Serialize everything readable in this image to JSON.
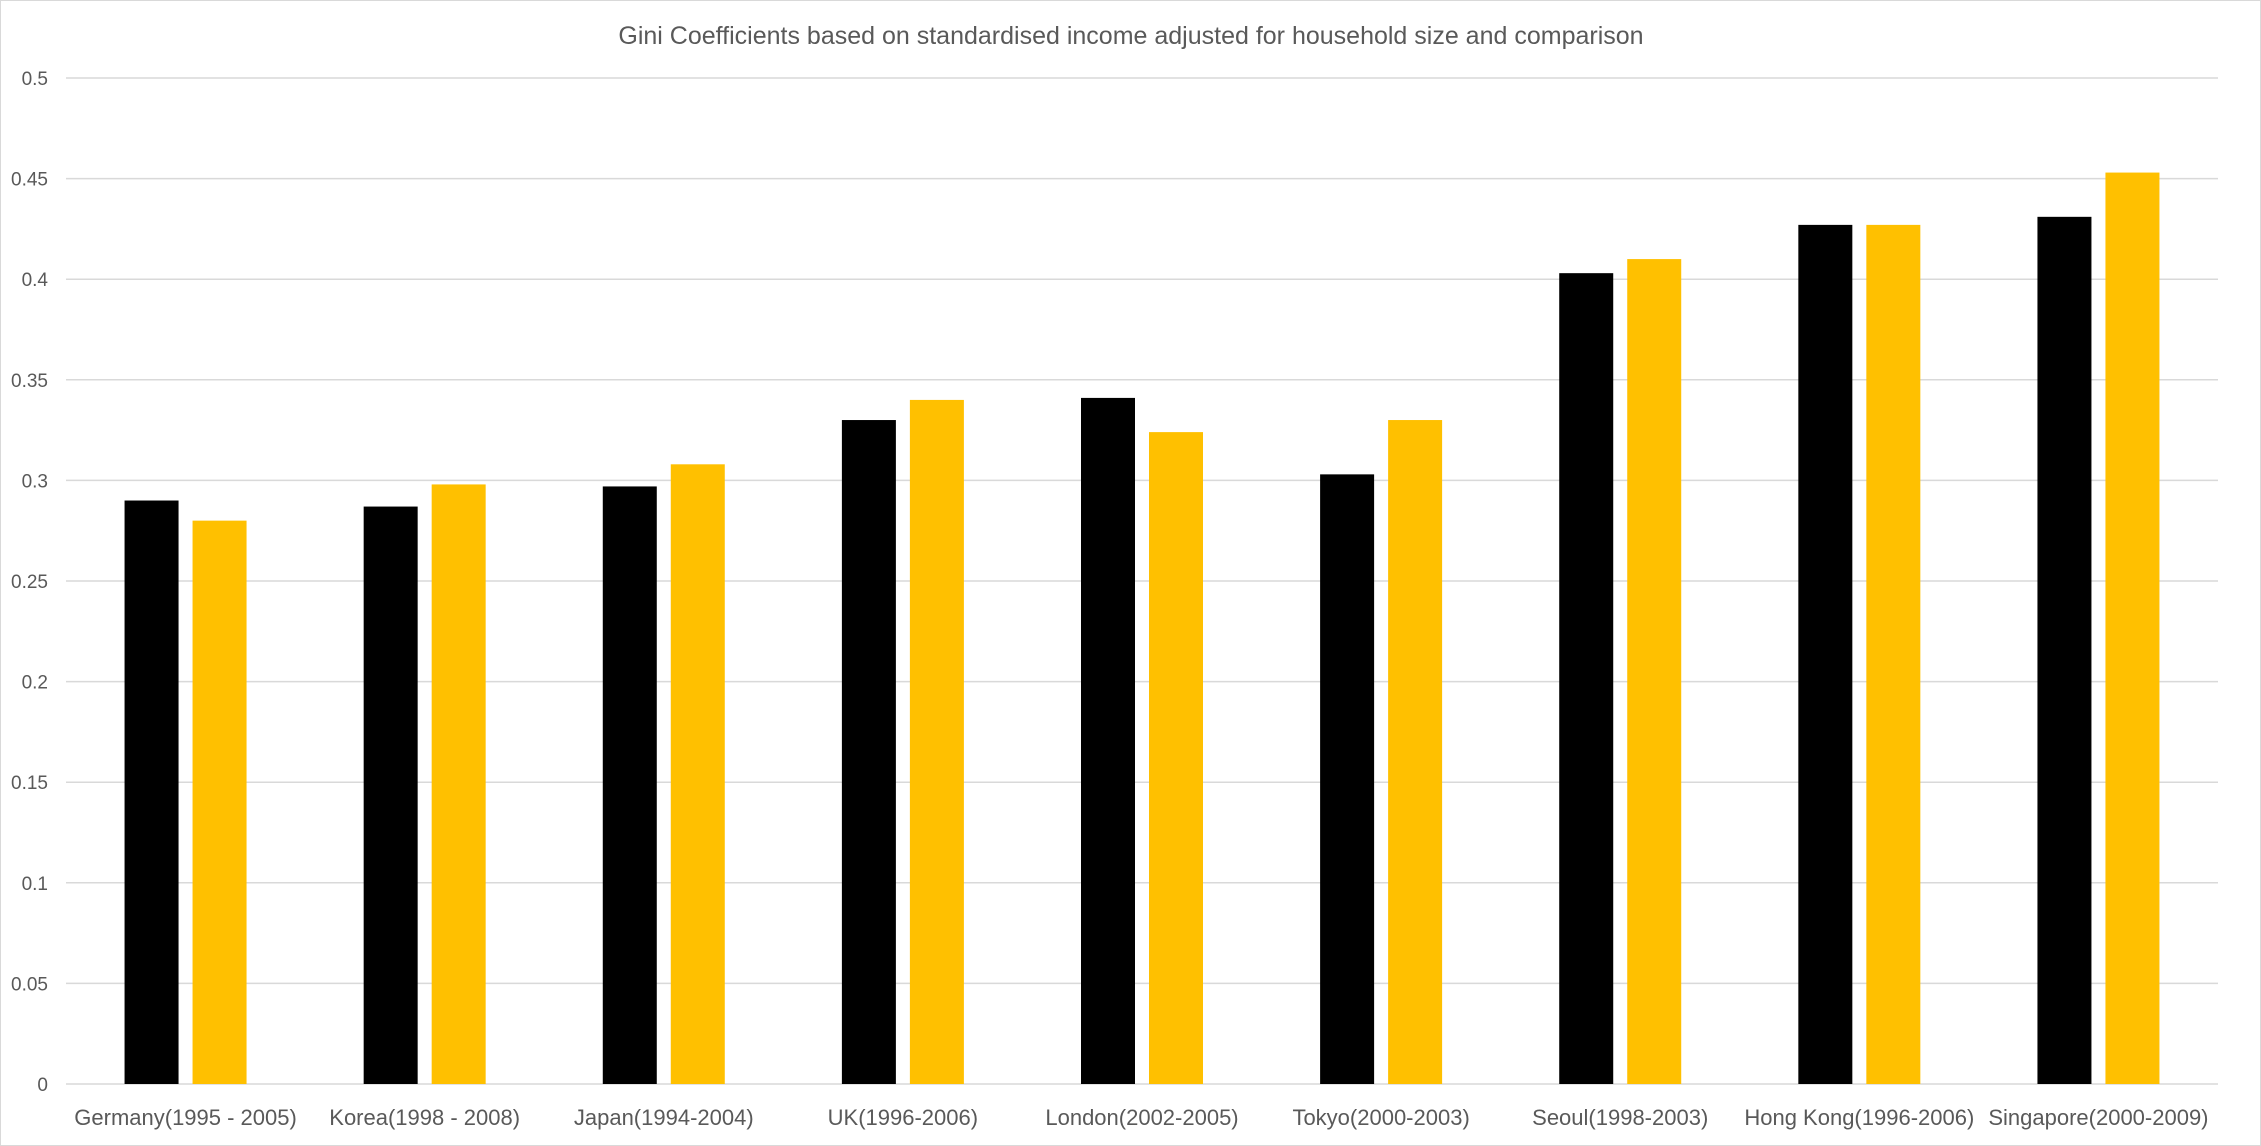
{
  "chart_data": {
    "type": "bar",
    "title": "Gini Coefficients based on standardised income adjusted for household size and comparison",
    "xlabel": "",
    "ylabel": "",
    "ylim": [
      0,
      0.5
    ],
    "yticks": [
      "0",
      "0.05",
      "0.1",
      "0.15",
      "0.2",
      "0.25",
      "0.3",
      "0.35",
      "0.4",
      "0.45",
      "0.5"
    ],
    "ytick_values": [
      0,
      0.05,
      0.1,
      0.15,
      0.2,
      0.25,
      0.3,
      0.35,
      0.4,
      0.45,
      0.5
    ],
    "grid": true,
    "legend": "none",
    "categories": [
      "Germany(1995 - 2005)",
      "Korea(1998 - 2008)",
      "Japan(1994-2004)",
      "UK(1996-2006)",
      "London(2002-2005)",
      "Tokyo(2000-2003)",
      "Seoul(1998-2003)",
      "Hong Kong(1996-2006)",
      "Singapore(2000-2009)"
    ],
    "series": [
      {
        "color": "#000000",
        "values": [
          0.29,
          0.287,
          0.297,
          0.33,
          0.341,
          0.303,
          0.403,
          0.427,
          0.431
        ]
      },
      {
        "color": "#ffc000",
        "values": [
          0.28,
          0.298,
          0.308,
          0.34,
          0.324,
          0.33,
          0.41,
          0.427,
          0.453
        ]
      }
    ]
  }
}
